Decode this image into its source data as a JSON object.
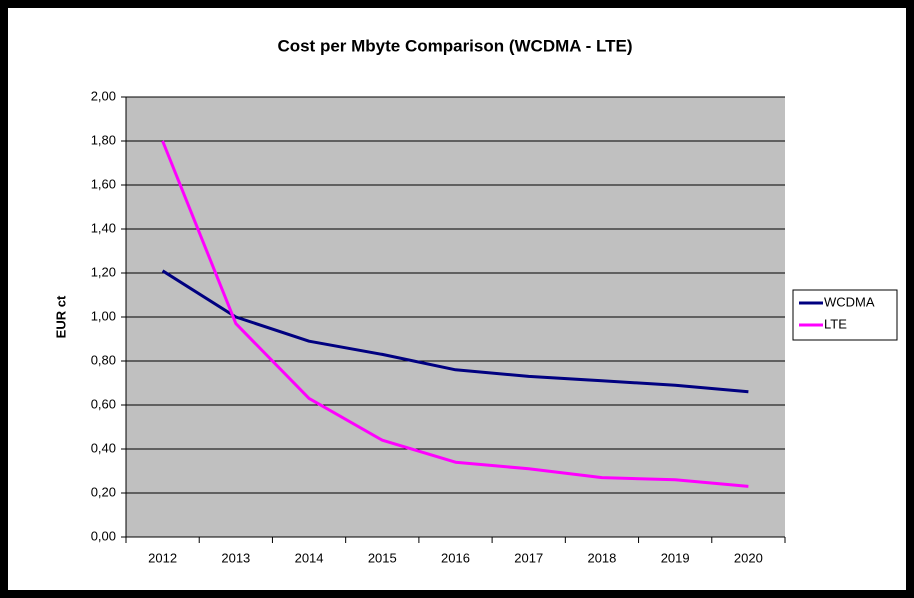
{
  "chart_data": {
    "type": "line",
    "title": "Cost per Mbyte Comparison (WCDMA - LTE)",
    "y_label": "EUR ct",
    "categories": [
      "2012",
      "2013",
      "2014",
      "2015",
      "2016",
      "2017",
      "2018",
      "2019",
      "2020"
    ],
    "series": [
      {
        "name": "WCDMA",
        "color": "#000080",
        "values": [
          1.21,
          1.0,
          0.89,
          0.83,
          0.76,
          0.73,
          0.71,
          0.69,
          0.66
        ]
      },
      {
        "name": "LTE",
        "color": "#ff00ff",
        "values": [
          1.8,
          0.97,
          0.63,
          0.44,
          0.34,
          0.31,
          0.27,
          0.26,
          0.23
        ]
      }
    ],
    "ylim": [
      0,
      2
    ],
    "yticks": [
      {
        "value": 0,
        "label": "0,00"
      },
      {
        "value": 0.2,
        "label": "0,20"
      },
      {
        "value": 0.4,
        "label": "0,40"
      },
      {
        "value": 0.6,
        "label": "0,60"
      },
      {
        "value": 0.8,
        "label": "0,80"
      },
      {
        "value": 1,
        "label": "1,00"
      },
      {
        "value": 1.2,
        "label": "1,20"
      },
      {
        "value": 1.4,
        "label": "1,40"
      },
      {
        "value": 1.6,
        "label": "1,60"
      },
      {
        "value": 1.8,
        "label": "1,80"
      },
      {
        "value": 2,
        "label": "2,00"
      }
    ],
    "grid": true,
    "legend": "right"
  }
}
